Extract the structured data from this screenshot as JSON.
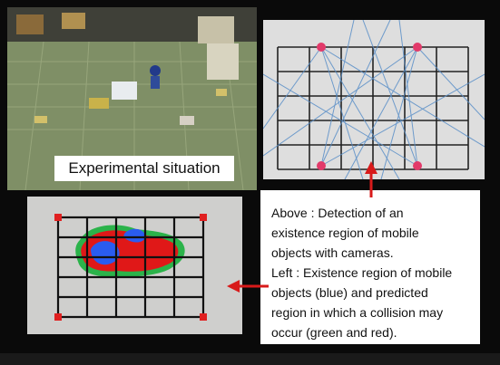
{
  "labels": {
    "experimental": "Experimental situation"
  },
  "caption": {
    "lines": [
      "Above : Detection of an",
      "existence region of mobile",
      "objects with cameras.",
      "Left : Existence region of mobile",
      "objects (blue) and predicted",
      "region in which a collision may",
      "occur  (green and red)."
    ]
  },
  "colors": {
    "marker": "#e23a6a",
    "arrow": "#d81a1a",
    "camera_lines": "#5a8fc8",
    "existence_region": "#2a5cf0",
    "predicted_green": "#2bb34a",
    "predicted_red": "#e01818"
  },
  "icons": {
    "arrow_up": "arrow-up-icon",
    "arrow_left": "arrow-left-icon"
  }
}
